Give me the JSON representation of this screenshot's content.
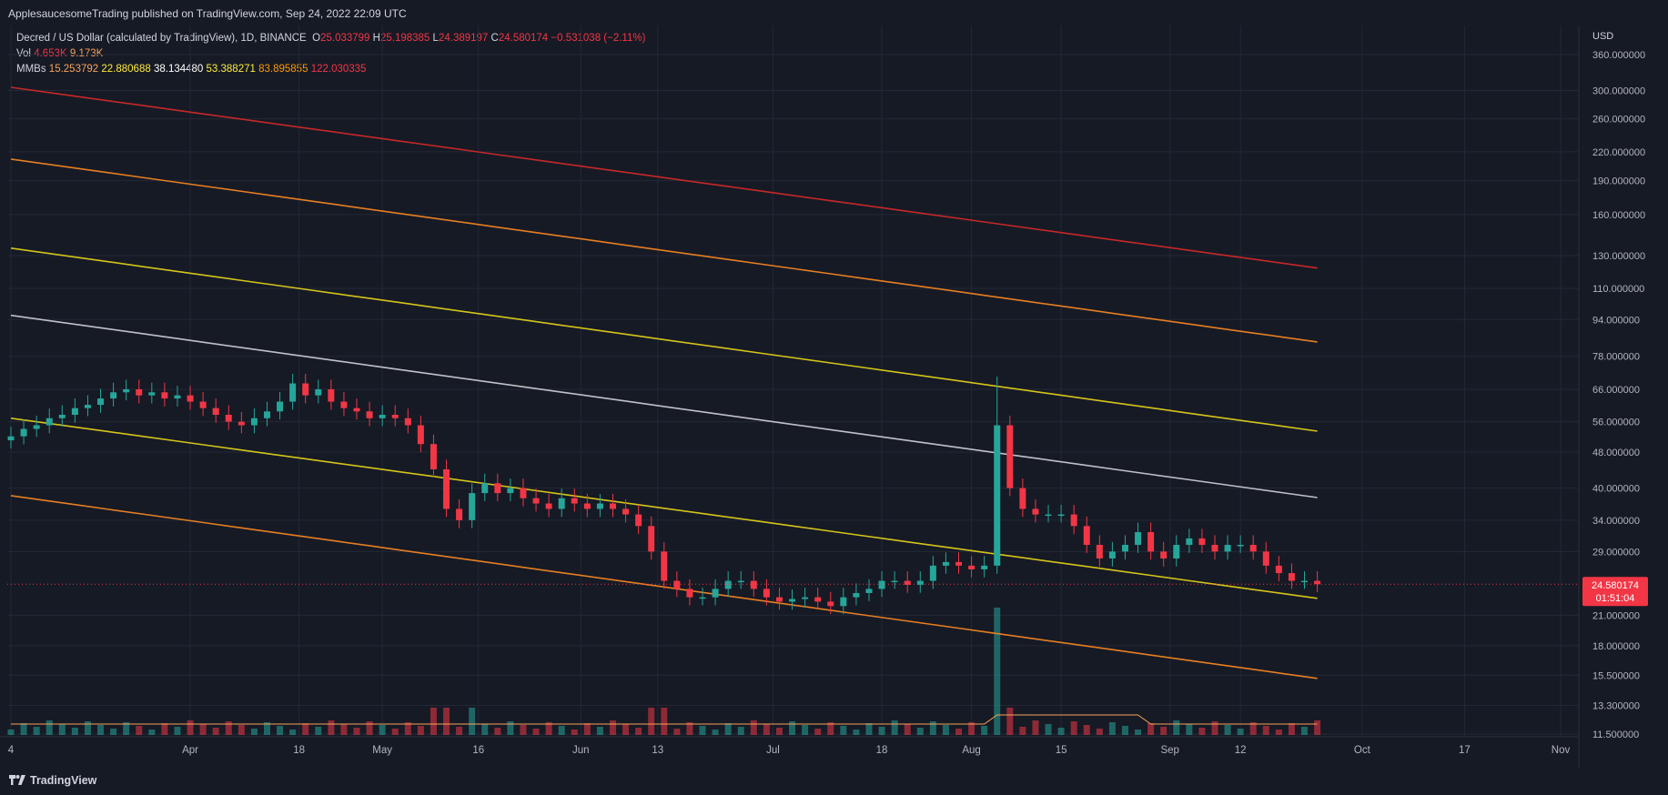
{
  "header": {
    "publish_text": "ApplesaucesomeTrading published on TradingView.com, Sep 24, 2022 22:09 UTC"
  },
  "legend": {
    "symbol": "Decred / US Dollar (calculated by TradingView), 1D, BINANCE",
    "o_label": "O",
    "o_value": "25.033799",
    "h_label": "H",
    "h_value": "25.198385",
    "l_label": "L",
    "l_value": "24.389197",
    "c_label": "C",
    "c_value": "24.580174",
    "change": "−0.531038 (−2.11%)",
    "vol_label": "Vol",
    "vol_value": "4.653K",
    "vol_ma": "9.173K",
    "mmb_label": "MMBs",
    "mmb_values": [
      "15.253792",
      "22.880688",
      "38.134480",
      "53.388271",
      "83.895855",
      "122.030335"
    ]
  },
  "price_axis": {
    "currency": "USD",
    "labels": [
      "360.000000",
      "300.000000",
      "260.000000",
      "220.000000",
      "190.000000",
      "160.000000",
      "130.000000",
      "110.000000",
      "94.000000",
      "78.000000",
      "66.000000",
      "56.000000",
      "48.000000",
      "40.000000",
      "34.000000",
      "29.000000",
      "21.000000",
      "18.000000",
      "15.500000",
      "13.300000",
      "11.500000"
    ],
    "current_price": "24.580174",
    "countdown": "01:51:04"
  },
  "time_axis": {
    "labels": [
      "4",
      "Apr",
      "18",
      "May",
      "16",
      "Jun",
      "13",
      "Jul",
      "18",
      "Aug",
      "15",
      "Sep",
      "12",
      "Oct",
      "17",
      "Nov"
    ]
  },
  "footer": {
    "brand": "TradingView"
  },
  "colors": {
    "background": "#161a25",
    "up": "#26a69a",
    "down": "#f23645",
    "band_red": "#c62828",
    "band_orange": "#e67e22",
    "band_yellow": "#d4c41a",
    "band_white": "#c0c0c8"
  },
  "chart_data": {
    "type": "candlestick",
    "title": "Decred / US Dollar (calculated by TradingView), 1D, BINANCE",
    "ylabel": "USD",
    "y_scale": "log",
    "ylim": [
      11.5,
      360
    ],
    "x_range": [
      "2022-03-04",
      "2022-11-01"
    ],
    "grid": true,
    "closes": [
      [
        "2022-03-04",
        52
      ],
      [
        "2022-03-06",
        54
      ],
      [
        "2022-03-08",
        55
      ],
      [
        "2022-03-10",
        57
      ],
      [
        "2022-03-12",
        58
      ],
      [
        "2022-03-14",
        60
      ],
      [
        "2022-03-16",
        61
      ],
      [
        "2022-03-18",
        63
      ],
      [
        "2022-03-20",
        65
      ],
      [
        "2022-03-22",
        66
      ],
      [
        "2022-03-24",
        64
      ],
      [
        "2022-03-26",
        65
      ],
      [
        "2022-03-28",
        63
      ],
      [
        "2022-03-30",
        64
      ],
      [
        "2022-04-01",
        62
      ],
      [
        "2022-04-03",
        60
      ],
      [
        "2022-04-05",
        58
      ],
      [
        "2022-04-07",
        56
      ],
      [
        "2022-04-09",
        55
      ],
      [
        "2022-04-11",
        57
      ],
      [
        "2022-04-13",
        59
      ],
      [
        "2022-04-15",
        62
      ],
      [
        "2022-04-17",
        68
      ],
      [
        "2022-04-19",
        64
      ],
      [
        "2022-04-21",
        66
      ],
      [
        "2022-04-23",
        62
      ],
      [
        "2022-04-25",
        60
      ],
      [
        "2022-04-27",
        59
      ],
      [
        "2022-04-29",
        57
      ],
      [
        "2022-05-01",
        58
      ],
      [
        "2022-05-03",
        57
      ],
      [
        "2022-05-05",
        55
      ],
      [
        "2022-05-07",
        50
      ],
      [
        "2022-05-09",
        44
      ],
      [
        "2022-05-11",
        36
      ],
      [
        "2022-05-13",
        34
      ],
      [
        "2022-05-15",
        39
      ],
      [
        "2022-05-17",
        41
      ],
      [
        "2022-05-19",
        39
      ],
      [
        "2022-05-21",
        40
      ],
      [
        "2022-05-23",
        38
      ],
      [
        "2022-05-25",
        37
      ],
      [
        "2022-05-27",
        36
      ],
      [
        "2022-05-29",
        38
      ],
      [
        "2022-05-31",
        37
      ],
      [
        "2022-06-02",
        36
      ],
      [
        "2022-06-04",
        37
      ],
      [
        "2022-06-06",
        36
      ],
      [
        "2022-06-08",
        35
      ],
      [
        "2022-06-10",
        33
      ],
      [
        "2022-06-12",
        29
      ],
      [
        "2022-06-14",
        25
      ],
      [
        "2022-06-16",
        24
      ],
      [
        "2022-06-18",
        23
      ],
      [
        "2022-06-20",
        23
      ],
      [
        "2022-06-22",
        24
      ],
      [
        "2022-06-24",
        25
      ],
      [
        "2022-06-26",
        25
      ],
      [
        "2022-06-28",
        24
      ],
      [
        "2022-06-30",
        23
      ],
      [
        "2022-07-02",
        22.5
      ],
      [
        "2022-07-04",
        22.8
      ],
      [
        "2022-07-06",
        23
      ],
      [
        "2022-07-08",
        22.5
      ],
      [
        "2022-07-10",
        22
      ],
      [
        "2022-07-12",
        23
      ],
      [
        "2022-07-14",
        23.5
      ],
      [
        "2022-07-16",
        24
      ],
      [
        "2022-07-18",
        25
      ],
      [
        "2022-07-20",
        25
      ],
      [
        "2022-07-22",
        24.5
      ],
      [
        "2022-07-24",
        25
      ],
      [
        "2022-07-26",
        27
      ],
      [
        "2022-07-28",
        27.5
      ],
      [
        "2022-07-30",
        27
      ],
      [
        "2022-08-01",
        26.5
      ],
      [
        "2022-08-03",
        27
      ],
      [
        "2022-08-05",
        55
      ],
      [
        "2022-08-07",
        40
      ],
      [
        "2022-08-09",
        36
      ],
      [
        "2022-08-11",
        35
      ],
      [
        "2022-08-13",
        35
      ],
      [
        "2022-08-15",
        35
      ],
      [
        "2022-08-17",
        33
      ],
      [
        "2022-08-19",
        30
      ],
      [
        "2022-08-21",
        28
      ],
      [
        "2022-08-23",
        29
      ],
      [
        "2022-08-25",
        30
      ],
      [
        "2022-08-27",
        32
      ],
      [
        "2022-08-29",
        29
      ],
      [
        "2022-08-31",
        28
      ],
      [
        "2022-09-02",
        30
      ],
      [
        "2022-09-04",
        31
      ],
      [
        "2022-09-06",
        30
      ],
      [
        "2022-09-08",
        29
      ],
      [
        "2022-09-10",
        30
      ],
      [
        "2022-09-12",
        30
      ],
      [
        "2022-09-14",
        29
      ],
      [
        "2022-09-16",
        27
      ],
      [
        "2022-09-18",
        26
      ],
      [
        "2022-09-20",
        25
      ],
      [
        "2022-09-22",
        25
      ],
      [
        "2022-09-24",
        24.58
      ]
    ],
    "mmb_bands": [
      {
        "name": "MMBs 1",
        "color": "#e67e22",
        "start": 38.5,
        "end": 15.25
      },
      {
        "name": "MMBs 2",
        "color": "#d4c41a",
        "start": 57,
        "end": 22.88
      },
      {
        "name": "MMBs 3",
        "color": "#c0c0c8",
        "start": 96,
        "end": 38.13
      },
      {
        "name": "MMBs 4",
        "color": "#d4c41a",
        "start": 135,
        "end": 53.39
      },
      {
        "name": "MMBs 5",
        "color": "#e67e22",
        "start": 212,
        "end": 83.9
      },
      {
        "name": "MMBs 6",
        "color": "#c62828",
        "start": 305,
        "end": 122.03
      }
    ]
  }
}
